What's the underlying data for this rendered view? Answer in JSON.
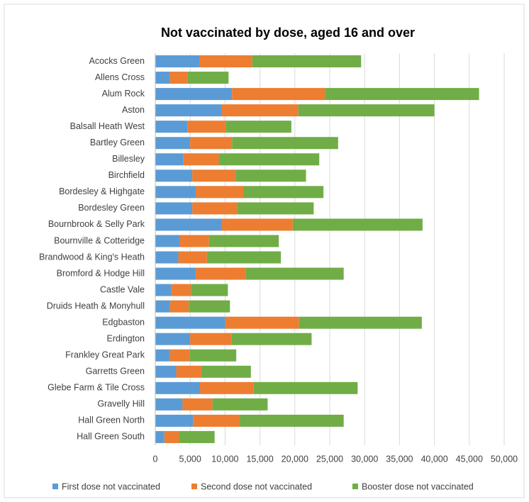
{
  "chart_data": {
    "type": "bar",
    "orientation": "horizontal",
    "stacked": true,
    "title": "Not vaccinated by dose, aged 16 and over",
    "categories": [
      "Acocks Green",
      "Allens Cross",
      "Alum Rock",
      "Aston",
      "Balsall Heath West",
      "Bartley Green",
      "Billesley",
      "Birchfield",
      "Bordesley & Highgate",
      "Bordesley Green",
      "Bournbrook & Selly Park",
      "Bournville & Cotteridge",
      "Brandwood & King's Heath",
      "Bromford & Hodge Hill",
      "Castle Vale",
      "Druids Heath & Monyhull",
      "Edgbaston",
      "Erdington",
      "Frankley Great Park",
      "Garretts Green",
      "Glebe Farm & Tile Cross",
      "Gravelly Hill",
      "Hall Green North",
      "Hall Green South"
    ],
    "series": [
      {
        "name": "First dose not vaccinated",
        "color": "#5b9bd5",
        "values": [
          6300,
          2100,
          11000,
          9500,
          4600,
          5000,
          4000,
          5300,
          5800,
          5300,
          9500,
          3500,
          3300,
          5800,
          2300,
          2100,
          10000,
          5000,
          2100,
          3000,
          6400,
          3900,
          5400,
          1300
        ]
      },
      {
        "name": "Second dose not vaccinated",
        "color": "#ed7d31",
        "values": [
          7600,
          2500,
          13300,
          11000,
          5500,
          6000,
          5100,
          6200,
          6800,
          6400,
          10200,
          4200,
          4100,
          7200,
          2800,
          2700,
          10600,
          5900,
          2800,
          3600,
          7700,
          4300,
          6700,
          2100
        ]
      },
      {
        "name": "Booster dose not vaccinated",
        "color": "#70ad47",
        "values": [
          15600,
          5900,
          22100,
          19500,
          9400,
          15200,
          14400,
          10100,
          11500,
          11000,
          18600,
          10000,
          10600,
          14000,
          5300,
          5900,
          17600,
          11500,
          6700,
          7100,
          14900,
          7900,
          14900,
          5100
        ]
      }
    ],
    "xlim": [
      0,
      50000
    ],
    "xticks": [
      0,
      {
        "value": 5000,
        "label": "5,000"
      },
      {
        "value": 10000,
        "label": "10,000"
      },
      {
        "value": 15000,
        "label": "15,000"
      },
      {
        "value": 20000,
        "label": "20,000"
      },
      {
        "value": 25000,
        "label": "25,000"
      },
      {
        "value": 30000,
        "label": "30,000"
      },
      {
        "value": 35000,
        "label": "35,000"
      },
      {
        "value": 40000,
        "label": "40,000"
      },
      {
        "value": 45000,
        "label": "45,000"
      },
      {
        "value": 50000,
        "label": "50,000"
      }
    ],
    "grid": true,
    "legend": "bottom"
  }
}
